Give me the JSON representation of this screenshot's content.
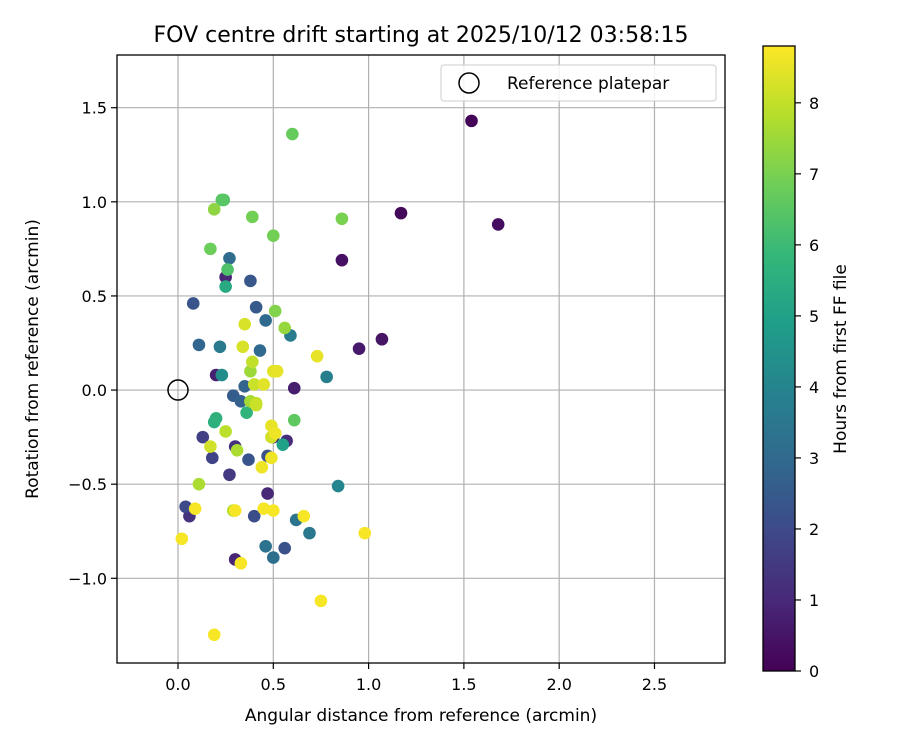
{
  "chart_data": {
    "type": "scatter",
    "title": "FOV centre drift starting at 2025/10/12 03:58:15",
    "xlabel": "Angular distance from reference (arcmin)",
    "ylabel": "Rotation from reference (arcmin)",
    "xlim": [
      -0.32,
      2.87
    ],
    "ylim": [
      -1.45,
      1.78
    ],
    "xticks": [
      0.0,
      0.5,
      1.0,
      1.5,
      2.0,
      2.5
    ],
    "xtick_labels": [
      "0.0",
      "0.5",
      "1.0",
      "1.5",
      "2.0",
      "2.5"
    ],
    "yticks": [
      -1.0,
      -0.5,
      0.0,
      0.5,
      1.0,
      1.5
    ],
    "ytick_labels": [
      "−1.0",
      "−0.5",
      "0.0",
      "0.5",
      "1.0",
      "1.5"
    ],
    "grid": true,
    "legend": {
      "location": "top-right",
      "entries": [
        "Reference platepar"
      ]
    },
    "reference_point": {
      "x": 0.0,
      "y": 0.0,
      "label": "Reference platepar"
    },
    "colorbar": {
      "label": "Hours from first FF file",
      "colormap": "viridis",
      "range": [
        0,
        8.8
      ],
      "ticks": [
        0,
        1,
        2,
        3,
        4,
        5,
        6,
        7,
        8
      ],
      "tick_labels": [
        "0",
        "1",
        "2",
        "3",
        "4",
        "5",
        "6",
        "7",
        "8"
      ]
    },
    "points": [
      {
        "x": 1.54,
        "y": 1.43,
        "h": 0.1
      },
      {
        "x": 1.17,
        "y": 0.94,
        "h": 0.2
      },
      {
        "x": 1.68,
        "y": 0.88,
        "h": 0.3
      },
      {
        "x": 0.86,
        "y": 0.69,
        "h": 0.4
      },
      {
        "x": 1.07,
        "y": 0.27,
        "h": 0.5
      },
      {
        "x": 0.95,
        "y": 0.22,
        "h": 0.6
      },
      {
        "x": 0.61,
        "y": 0.01,
        "h": 0.7
      },
      {
        "x": 0.2,
        "y": 0.08,
        "h": 0.8
      },
      {
        "x": 0.25,
        "y": 0.6,
        "h": 0.9
      },
      {
        "x": 0.3,
        "y": -0.9,
        "h": 0.9
      },
      {
        "x": 0.47,
        "y": -0.55,
        "h": 1.0
      },
      {
        "x": 0.5,
        "y": -0.25,
        "h": 1.0
      },
      {
        "x": 0.57,
        "y": -0.27,
        "h": 1.1
      },
      {
        "x": 0.3,
        "y": -0.3,
        "h": 1.2
      },
      {
        "x": 0.06,
        "y": -0.67,
        "h": 1.3
      },
      {
        "x": 0.27,
        "y": -0.45,
        "h": 1.5
      },
      {
        "x": 0.13,
        "y": -0.25,
        "h": 1.7
      },
      {
        "x": 0.18,
        "y": -0.36,
        "h": 1.8
      },
      {
        "x": 0.04,
        "y": -0.62,
        "h": 2.0
      },
      {
        "x": 0.4,
        "y": -0.67,
        "h": 2.1
      },
      {
        "x": 0.56,
        "y": -0.84,
        "h": 2.2
      },
      {
        "x": 0.47,
        "y": -0.35,
        "h": 2.2
      },
      {
        "x": 0.37,
        "y": -0.37,
        "h": 2.3
      },
      {
        "x": 0.08,
        "y": 0.46,
        "h": 2.3
      },
      {
        "x": 0.38,
        "y": 0.58,
        "h": 2.4
      },
      {
        "x": 0.41,
        "y": 0.44,
        "h": 2.5
      },
      {
        "x": 0.29,
        "y": -0.03,
        "h": 2.6
      },
      {
        "x": 0.33,
        "y": -0.06,
        "h": 2.7
      },
      {
        "x": 0.35,
        "y": 0.02,
        "h": 2.8
      },
      {
        "x": 0.11,
        "y": 0.24,
        "h": 2.9
      },
      {
        "x": 0.43,
        "y": 0.21,
        "h": 3.0
      },
      {
        "x": 0.46,
        "y": 0.37,
        "h": 3.0
      },
      {
        "x": 0.27,
        "y": 0.7,
        "h": 3.1
      },
      {
        "x": 0.5,
        "y": -0.89,
        "h": 3.2
      },
      {
        "x": 0.46,
        "y": -0.83,
        "h": 3.3
      },
      {
        "x": 0.62,
        "y": -0.69,
        "h": 3.4
      },
      {
        "x": 0.69,
        "y": -0.76,
        "h": 3.5
      },
      {
        "x": 0.22,
        "y": 0.23,
        "h": 3.6
      },
      {
        "x": 0.59,
        "y": 0.29,
        "h": 3.7
      },
      {
        "x": 0.78,
        "y": 0.07,
        "h": 3.8
      },
      {
        "x": 0.84,
        "y": -0.51,
        "h": 4.0
      },
      {
        "x": 0.23,
        "y": 0.08,
        "h": 4.3
      },
      {
        "x": 0.55,
        "y": -0.29,
        "h": 5.0
      },
      {
        "x": 0.25,
        "y": 0.55,
        "h": 5.3
      },
      {
        "x": 0.19,
        "y": -0.17,
        "h": 5.5
      },
      {
        "x": 0.2,
        "y": -0.15,
        "h": 5.6
      },
      {
        "x": 0.36,
        "y": -0.12,
        "h": 5.7
      },
      {
        "x": 0.26,
        "y": 0.64,
        "h": 6.3
      },
      {
        "x": 0.24,
        "y": 1.01,
        "h": 6.4
      },
      {
        "x": 0.23,
        "y": 1.01,
        "h": 6.5
      },
      {
        "x": 0.61,
        "y": -0.16,
        "h": 6.6
      },
      {
        "x": 0.6,
        "y": 1.36,
        "h": 6.7
      },
      {
        "x": 0.17,
        "y": 0.75,
        "h": 6.8
      },
      {
        "x": 0.39,
        "y": 0.92,
        "h": 6.9
      },
      {
        "x": 0.5,
        "y": 0.82,
        "h": 6.9
      },
      {
        "x": 0.86,
        "y": 0.91,
        "h": 7.0
      },
      {
        "x": 0.51,
        "y": 0.42,
        "h": 7.1
      },
      {
        "x": 0.19,
        "y": 0.96,
        "h": 7.3
      },
      {
        "x": 0.56,
        "y": 0.33,
        "h": 7.4
      },
      {
        "x": 0.38,
        "y": 0.1,
        "h": 7.5
      },
      {
        "x": 0.38,
        "y": -0.06,
        "h": 7.6
      },
      {
        "x": 0.31,
        "y": -0.32,
        "h": 7.7
      },
      {
        "x": 0.11,
        "y": -0.5,
        "h": 7.7
      },
      {
        "x": 0.29,
        "y": -0.64,
        "h": 7.8
      },
      {
        "x": 0.25,
        "y": -0.22,
        "h": 7.9
      },
      {
        "x": 0.39,
        "y": 0.15,
        "h": 8.0
      },
      {
        "x": 0.41,
        "y": -0.07,
        "h": 8.0
      },
      {
        "x": 0.4,
        "y": 0.03,
        "h": 8.1
      },
      {
        "x": 0.41,
        "y": -0.08,
        "h": 8.1
      },
      {
        "x": 0.49,
        "y": -0.25,
        "h": 8.2
      },
      {
        "x": 0.17,
        "y": -0.3,
        "h": 8.2
      },
      {
        "x": 0.35,
        "y": 0.35,
        "h": 8.3
      },
      {
        "x": 0.34,
        "y": 0.23,
        "h": 8.3
      },
      {
        "x": 0.45,
        "y": 0.03,
        "h": 8.4
      },
      {
        "x": 0.5,
        "y": 0.1,
        "h": 8.4
      },
      {
        "x": 0.52,
        "y": 0.1,
        "h": 8.5
      },
      {
        "x": 0.73,
        "y": 0.18,
        "h": 8.5
      },
      {
        "x": 0.49,
        "y": -0.19,
        "h": 8.5
      },
      {
        "x": 0.51,
        "y": -0.23,
        "h": 8.6
      },
      {
        "x": 0.44,
        "y": -0.41,
        "h": 8.6
      },
      {
        "x": 0.49,
        "y": -0.36,
        "h": 8.6
      },
      {
        "x": 0.45,
        "y": -0.63,
        "h": 8.7
      },
      {
        "x": 0.5,
        "y": -0.64,
        "h": 8.7
      },
      {
        "x": 0.66,
        "y": -0.67,
        "h": 8.7
      },
      {
        "x": 0.3,
        "y": -0.64,
        "h": 8.7
      },
      {
        "x": 0.09,
        "y": -0.63,
        "h": 8.7
      },
      {
        "x": 0.02,
        "y": -0.79,
        "h": 8.7
      },
      {
        "x": 0.33,
        "y": -0.92,
        "h": 8.7
      },
      {
        "x": 0.98,
        "y": -0.76,
        "h": 8.7
      },
      {
        "x": 0.75,
        "y": -1.12,
        "h": 8.7
      },
      {
        "x": 0.19,
        "y": -1.3,
        "h": 8.7
      }
    ]
  },
  "colors": {
    "grid": "#b0b0b0",
    "axes": "#000000",
    "viridis_stops": [
      "#440154",
      "#482878",
      "#3e4989",
      "#31688e",
      "#26828e",
      "#1f9e89",
      "#35b779",
      "#6ece58",
      "#b5de2b",
      "#fde725"
    ]
  }
}
